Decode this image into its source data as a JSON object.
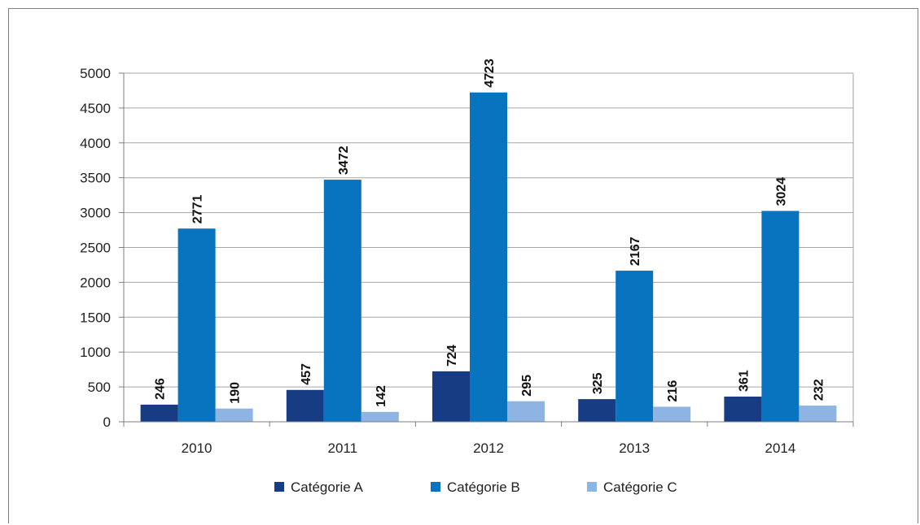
{
  "chart_data": {
    "type": "bar",
    "categories": [
      "2010",
      "2011",
      "2012",
      "2013",
      "2014"
    ],
    "series": [
      {
        "name": "Catégorie A",
        "color": "#173c84",
        "values": [
          246,
          457,
          724,
          325,
          361
        ]
      },
      {
        "name": "Catégorie B",
        "color": "#0873be",
        "values": [
          2771,
          3472,
          4723,
          2167,
          3024
        ]
      },
      {
        "name": "Catégorie C",
        "color": "#8db4e2",
        "values": [
          190,
          142,
          295,
          216,
          232
        ]
      }
    ],
    "title": "",
    "xlabel": "",
    "ylabel": "",
    "ylim": [
      0,
      5000
    ],
    "yticks": [
      0,
      500,
      1000,
      1500,
      2000,
      2500,
      3000,
      3500,
      4000,
      4500,
      5000
    ],
    "grid": true,
    "legend": "bottom"
  }
}
